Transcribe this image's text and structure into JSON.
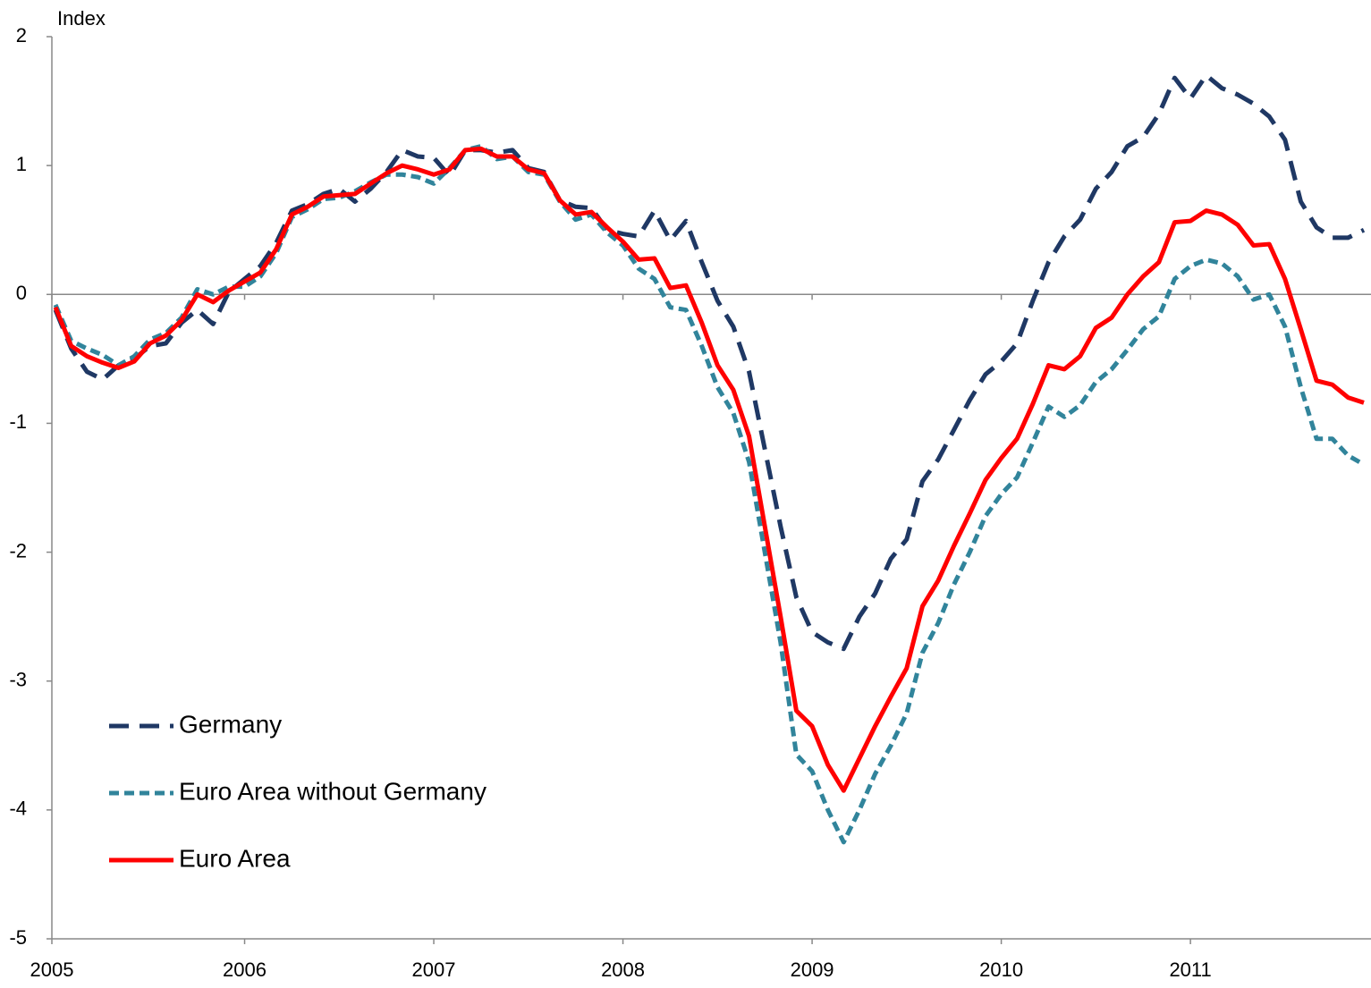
{
  "chart_data": {
    "type": "line",
    "y_label": "Index",
    "categories": [
      "2005",
      null,
      null,
      null,
      null,
      null,
      null,
      null,
      null,
      null,
      null,
      null,
      "2006",
      null,
      null,
      null,
      null,
      null,
      null,
      null,
      null,
      null,
      null,
      null,
      "2007",
      null,
      null,
      null,
      null,
      null,
      null,
      null,
      null,
      null,
      null,
      null,
      "2008",
      null,
      null,
      null,
      null,
      null,
      null,
      null,
      null,
      null,
      null,
      null,
      "2009",
      null,
      null,
      null,
      null,
      null,
      null,
      null,
      null,
      null,
      null,
      null,
      "2010",
      null,
      null,
      null,
      null,
      null,
      null,
      null,
      null,
      null,
      null,
      null,
      "2011",
      null,
      null,
      null,
      null,
      null,
      null,
      null,
      null,
      null,
      null,
      null
    ],
    "ylim": [
      -5,
      2
    ],
    "yticks": [
      -5,
      -4,
      -3,
      -2,
      -1,
      0,
      1,
      2
    ],
    "grid": false,
    "legend": "lower left",
    "series": [
      {
        "name": "Germany",
        "color": "#1f3864",
        "line_style": "long-dash",
        "values": [
          -0.12,
          -0.42,
          -0.6,
          -0.66,
          -0.55,
          -0.5,
          -0.4,
          -0.38,
          -0.22,
          -0.12,
          -0.23,
          0.02,
          0.12,
          0.22,
          0.4,
          0.65,
          0.7,
          0.78,
          0.82,
          0.72,
          0.82,
          0.95,
          1.12,
          1.07,
          1.06,
          0.92,
          1.12,
          1.12,
          1.1,
          1.12,
          0.98,
          0.95,
          0.73,
          0.68,
          0.67,
          0.5,
          0.47,
          0.45,
          0.65,
          0.42,
          0.57,
          0.25,
          -0.05,
          -0.25,
          -0.6,
          -1.2,
          -1.8,
          -2.35,
          -2.62,
          -2.7,
          -2.75,
          -2.5,
          -2.32,
          -2.05,
          -1.9,
          -1.45,
          -1.28,
          -1.05,
          -0.82,
          -0.62,
          -0.52,
          -0.38,
          -0.05,
          0.25,
          0.45,
          0.58,
          0.82,
          0.95,
          1.15,
          1.22,
          1.4,
          1.68,
          1.52,
          1.7,
          1.6,
          1.55,
          1.48,
          1.38,
          1.2,
          0.72,
          0.52,
          0.44,
          0.44,
          0.5
        ]
      },
      {
        "name": "Euro Area without Germany",
        "color": "#31849b",
        "line_style": "short-dash",
        "values": [
          -0.08,
          -0.36,
          -0.42,
          -0.47,
          -0.55,
          -0.48,
          -0.35,
          -0.3,
          -0.18,
          0.04,
          0.0,
          0.06,
          0.06,
          0.14,
          0.32,
          0.6,
          0.66,
          0.74,
          0.75,
          0.8,
          0.87,
          0.93,
          0.93,
          0.91,
          0.86,
          0.98,
          1.12,
          1.15,
          1.05,
          1.07,
          0.95,
          0.93,
          0.72,
          0.58,
          0.62,
          0.48,
          0.38,
          0.2,
          0.12,
          -0.1,
          -0.12,
          -0.4,
          -0.72,
          -0.92,
          -1.3,
          -2.0,
          -2.7,
          -3.57,
          -3.7,
          -4.0,
          -4.25,
          -4.0,
          -3.72,
          -3.5,
          -3.25,
          -2.78,
          -2.55,
          -2.25,
          -2.0,
          -1.72,
          -1.55,
          -1.42,
          -1.15,
          -0.87,
          -0.95,
          -0.86,
          -0.68,
          -0.58,
          -0.43,
          -0.27,
          -0.17,
          0.12,
          0.22,
          0.27,
          0.24,
          0.14,
          -0.04,
          0.0,
          -0.25,
          -0.72,
          -1.12,
          -1.12,
          -1.25,
          -1.32
        ]
      },
      {
        "name": "Euro Area",
        "color": "#ff0000",
        "line_style": "solid",
        "values": [
          -0.1,
          -0.4,
          -0.48,
          -0.53,
          -0.57,
          -0.52,
          -0.38,
          -0.32,
          -0.2,
          0.0,
          -0.06,
          0.03,
          0.1,
          0.17,
          0.35,
          0.62,
          0.68,
          0.76,
          0.77,
          0.78,
          0.86,
          0.94,
          1.0,
          0.97,
          0.93,
          0.97,
          1.12,
          1.13,
          1.07,
          1.07,
          0.97,
          0.94,
          0.73,
          0.62,
          0.64,
          0.52,
          0.41,
          0.27,
          0.28,
          0.05,
          0.07,
          -0.22,
          -0.55,
          -0.74,
          -1.1,
          -1.8,
          -2.5,
          -3.23,
          -3.35,
          -3.65,
          -3.85,
          -3.6,
          -3.35,
          -3.12,
          -2.9,
          -2.42,
          -2.22,
          -1.95,
          -1.7,
          -1.44,
          -1.27,
          -1.12,
          -0.85,
          -0.55,
          -0.58,
          -0.48,
          -0.26,
          -0.18,
          0.0,
          0.14,
          0.25,
          0.56,
          0.57,
          0.65,
          0.62,
          0.54,
          0.38,
          0.39,
          0.12,
          -0.27,
          -0.67,
          -0.7,
          -0.8,
          -0.84
        ]
      }
    ]
  }
}
